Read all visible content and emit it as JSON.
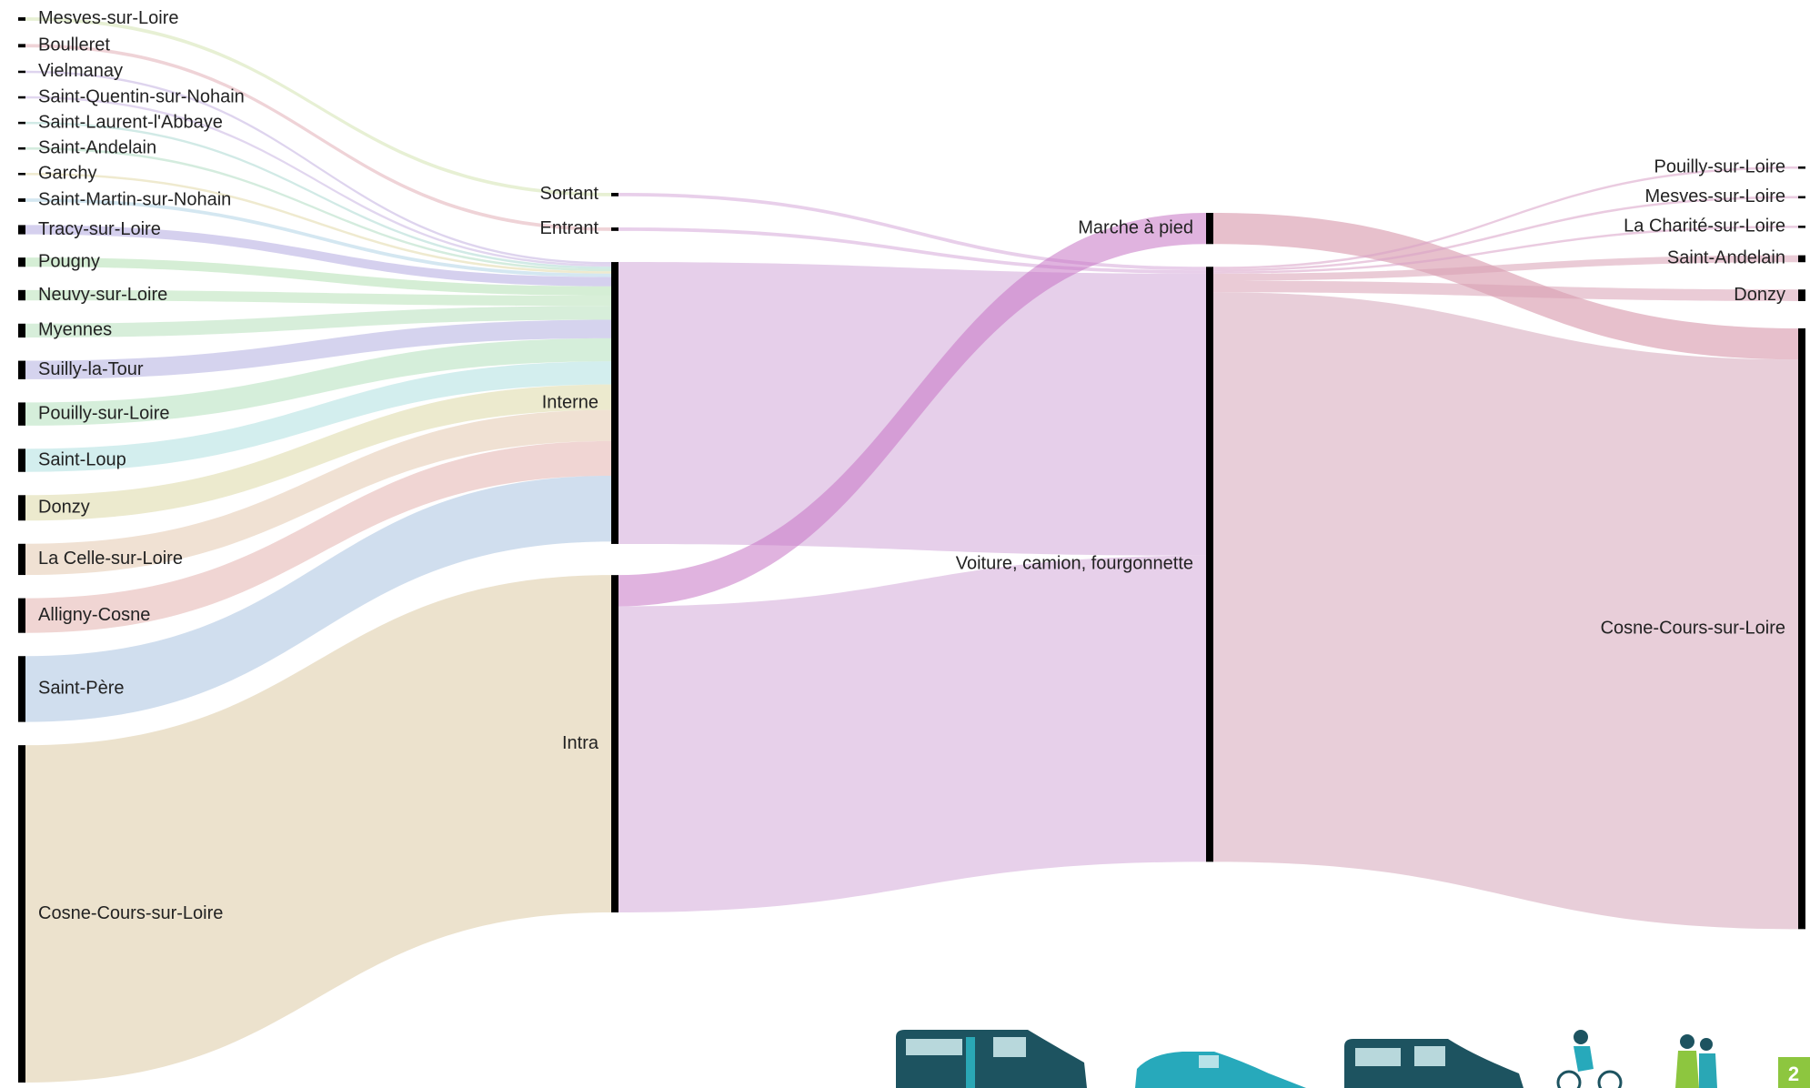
{
  "chart_data": {
    "type": "sankey",
    "nodes": [
      {
        "name": "Mesves-sur-Loire",
        "column": 0
      },
      {
        "name": "Boulleret",
        "column": 0
      },
      {
        "name": "Vielmanay",
        "column": 0
      },
      {
        "name": "Saint-Quentin-sur-Nohain",
        "column": 0
      },
      {
        "name": "Saint-Laurent-l'Abbaye",
        "column": 0
      },
      {
        "name": "Saint-Andelain",
        "column": 0
      },
      {
        "name": "Garchy",
        "column": 0
      },
      {
        "name": "Saint-Martin-sur-Nohain",
        "column": 0
      },
      {
        "name": "Tracy-sur-Loire",
        "column": 0
      },
      {
        "name": "Pougny",
        "column": 0
      },
      {
        "name": "Neuvy-sur-Loire",
        "column": 0
      },
      {
        "name": "Myennes",
        "column": 0
      },
      {
        "name": "Suilly-la-Tour",
        "column": 0
      },
      {
        "name": "Pouilly-sur-Loire",
        "column": 0
      },
      {
        "name": "Saint-Loup",
        "column": 0
      },
      {
        "name": "Donzy",
        "column": 0
      },
      {
        "name": "La Celle-sur-Loire",
        "column": 0
      },
      {
        "name": "Alligny-Cosne",
        "column": 0
      },
      {
        "name": "Saint-Père",
        "column": 0
      },
      {
        "name": "Cosne-Cours-sur-Loire",
        "column": 0
      },
      {
        "name": "Sortant",
        "column": 1
      },
      {
        "name": "Entrant",
        "column": 1
      },
      {
        "name": "Interne",
        "column": 1
      },
      {
        "name": "Intra",
        "column": 1
      },
      {
        "name": "Marche à pied",
        "column": 2
      },
      {
        "name": "Voiture, camion, fourgonnette",
        "column": 2
      },
      {
        "name": "Pouilly-sur-Loire",
        "column": 3
      },
      {
        "name": "Mesves-sur-Loire",
        "column": 3
      },
      {
        "name": "La Charité-sur-Loire",
        "column": 3
      },
      {
        "name": "Saint-Andelain",
        "column": 3
      },
      {
        "name": "Donzy",
        "column": 3
      },
      {
        "name": "Cosne-Cours-sur-Loire",
        "column": 3
      }
    ],
    "links": [
      {
        "source": 0,
        "target": 20,
        "value": 3,
        "color": "#d3e3b0"
      },
      {
        "source": 1,
        "target": 21,
        "value": 3,
        "color": "#e2aeb6"
      },
      {
        "source": 2,
        "target": 22,
        "value": 2,
        "color": "#c2b0e0"
      },
      {
        "source": 3,
        "target": 22,
        "value": 2,
        "color": "#c8b4e2"
      },
      {
        "source": 4,
        "target": 22,
        "value": 2,
        "color": "#acd9d2"
      },
      {
        "source": 5,
        "target": 22,
        "value": 2,
        "color": "#b0dcc2"
      },
      {
        "source": 6,
        "target": 22,
        "value": 2,
        "color": "#e2d9a8"
      },
      {
        "source": 7,
        "target": 22,
        "value": 3,
        "color": "#b0d4e6"
      },
      {
        "source": 8,
        "target": 22,
        "value": 8,
        "color": "#b3aae0"
      },
      {
        "source": 9,
        "target": 22,
        "value": 8,
        "color": "#b3e0b3"
      },
      {
        "source": 10,
        "target": 22,
        "value": 9,
        "color": "#b8e2b8"
      },
      {
        "source": 11,
        "target": 22,
        "value": 12,
        "color": "#b6e0bc"
      },
      {
        "source": 12,
        "target": 22,
        "value": 16,
        "color": "#b3aee0"
      },
      {
        "source": 13,
        "target": 22,
        "value": 20,
        "color": "#b3e0bc"
      },
      {
        "source": 14,
        "target": 22,
        "value": 20,
        "color": "#aee0e0"
      },
      {
        "source": 15,
        "target": 22,
        "value": 22,
        "color": "#ddd9a6"
      },
      {
        "source": 16,
        "target": 22,
        "value": 27,
        "color": "#e4c9ae"
      },
      {
        "source": 17,
        "target": 22,
        "value": 30,
        "color": "#e4b3ae"
      },
      {
        "source": 18,
        "target": 22,
        "value": 57,
        "color": "#a9c2e0"
      },
      {
        "source": 19,
        "target": 23,
        "value": 292,
        "color": "#dccaa4"
      },
      {
        "source": 20,
        "target": 25,
        "value": 3,
        "color": "#d6a8d8"
      },
      {
        "source": 21,
        "target": 25,
        "value": 3,
        "color": "#d6a8d8"
      },
      {
        "source": 22,
        "target": 25,
        "value": 244,
        "color": "#d1a8d8"
      },
      {
        "source": 23,
        "target": 24,
        "value": 27,
        "color": "#c774c4"
      },
      {
        "source": 23,
        "target": 25,
        "value": 265,
        "color": "#d4aad8"
      },
      {
        "source": 24,
        "target": 31,
        "value": 27,
        "color": "#d48ca2"
      },
      {
        "source": 25,
        "target": 26,
        "value": 2,
        "color": "#d8a0c6"
      },
      {
        "source": 25,
        "target": 27,
        "value": 2,
        "color": "#d8a0c6"
      },
      {
        "source": 25,
        "target": 28,
        "value": 2,
        "color": "#d8a0c6"
      },
      {
        "source": 25,
        "target": 29,
        "value": 6,
        "color": "#d8a0b4"
      },
      {
        "source": 25,
        "target": 30,
        "value": 10,
        "color": "#d8a0b4"
      },
      {
        "source": 25,
        "target": 31,
        "value": 493,
        "color": "#d6a6ba"
      }
    ]
  },
  "page_number": "2"
}
